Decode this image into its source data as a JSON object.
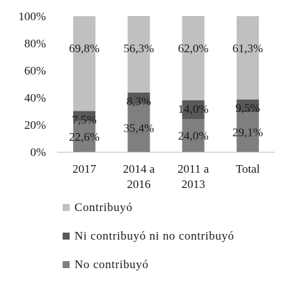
{
  "chart_data": {
    "type": "bar",
    "stacked": true,
    "percent_stacked": true,
    "categories": [
      "2017",
      "2014 a 2016",
      "2011 a 2013",
      "Total"
    ],
    "category_lines": [
      [
        "2017"
      ],
      [
        "2014 a",
        "2016"
      ],
      [
        "2011 a",
        "2013"
      ],
      [
        "Total"
      ]
    ],
    "series": [
      {
        "name": "No contribuyó",
        "values": [
          22.6,
          35.4,
          24.0,
          29.1
        ],
        "labels": [
          "22,6%",
          "35,4%",
          "24,0%",
          "29,1%"
        ],
        "color": "#7f7f7f"
      },
      {
        "name": "Ni contribuyó ni no contribuyó",
        "values": [
          7.5,
          8.3,
          14.0,
          9.5
        ],
        "labels": [
          "7,5%",
          "8,3%",
          "14,0%",
          "9,5%"
        ],
        "color": "#595959"
      },
      {
        "name": "Contribuyó",
        "values": [
          69.8,
          56.3,
          62.0,
          61.3
        ],
        "labels": [
          "69,8%",
          "56,3%",
          "62,0%",
          "61,3%"
        ],
        "color": "#c0c0c0"
      }
    ],
    "ylim": [
      0,
      100
    ],
    "yticks": [
      0,
      20,
      40,
      60,
      80,
      100
    ],
    "ytick_labels": [
      "0%",
      "20%",
      "40%",
      "60%",
      "80%",
      "100%"
    ],
    "grid": false,
    "legend_position": "bottom",
    "title": "",
    "xlabel": "",
    "ylabel": ""
  },
  "legend": {
    "items": [
      {
        "label": "Contribuyó",
        "color": "#c0c0c0"
      },
      {
        "label": "Ni contribuyó ni no contribuyó",
        "color": "#595959"
      },
      {
        "label": "No contribuyó",
        "color": "#7f7f7f"
      }
    ]
  }
}
